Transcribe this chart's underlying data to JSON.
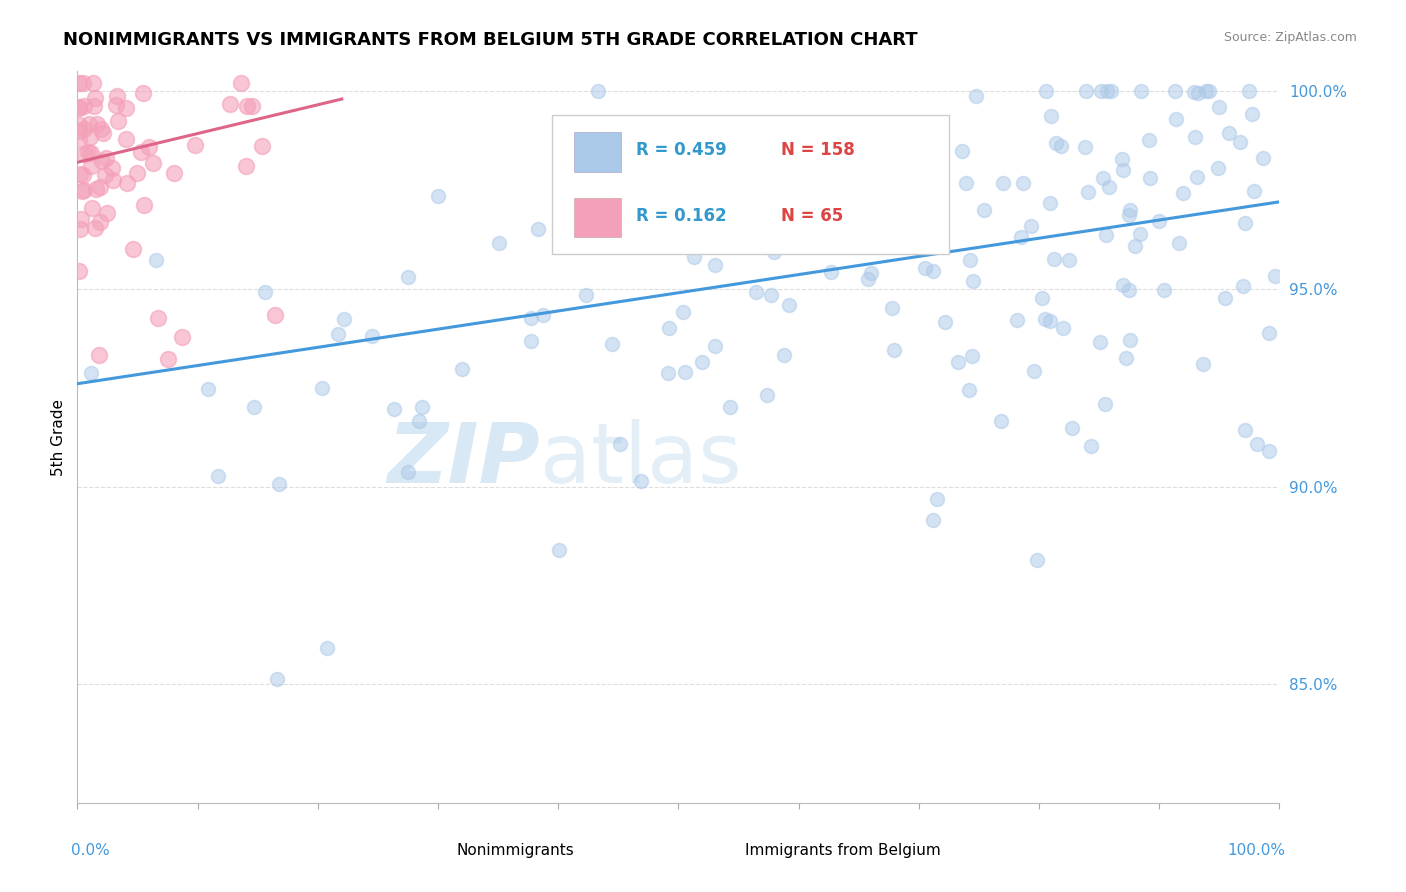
{
  "title": "NONIMMIGRANTS VS IMMIGRANTS FROM BELGIUM 5TH GRADE CORRELATION CHART",
  "source": "Source: ZipAtlas.com",
  "ylabel": "5th Grade",
  "legend_items": [
    {
      "label": "Nonimmigrants",
      "color": "#aac8e8",
      "R": 0.459,
      "N": 158
    },
    {
      "label": "Immigrants from Belgium",
      "color": "#f4a0b8",
      "R": 0.162,
      "N": 65
    }
  ],
  "blue_line_y0": 0.926,
  "blue_line_y1": 0.972,
  "pink_line_y0": 0.982,
  "pink_line_y1": 0.998,
  "pink_line_x1": 0.22,
  "ylim_low": 0.82,
  "ylim_high": 1.005,
  "xlim_low": 0.0,
  "xlim_high": 1.0,
  "yticks": [
    0.85,
    0.9,
    0.95,
    1.0
  ],
  "ytick_labels": [
    "85.0%",
    "90.0%",
    "95.0%",
    "100.0%"
  ],
  "background_color": "#ffffff",
  "scatter_color_blue": "#aac8e8",
  "scatter_color_pink": "#f4a0b8",
  "line_color_blue": "#4499dd",
  "line_color_pink": "#dd6688",
  "grid_color": "#dddddd",
  "legend_R_color": "#3399cc",
  "legend_N_color": "#dd4444"
}
